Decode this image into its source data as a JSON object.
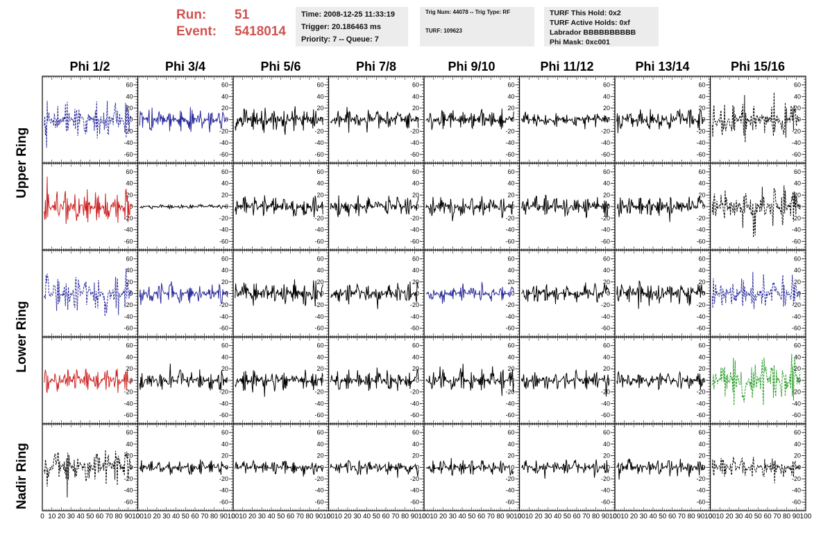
{
  "header": {
    "run_label": "Run:",
    "run_value": "51",
    "event_label": "Event:",
    "event_value": "5418014",
    "time": "Time: 2008-12-25 11:33:19",
    "trigger": "Trigger: 20.186463 ms",
    "priority": "Priority: 7 -- Queue: 7",
    "trig_num": "Trig Num: 44078 -- Trig Type: RF",
    "turf": "TURF: 109623",
    "turf_hold": "TURF This Hold: 0x2",
    "turf_active": "TURF Active Holds: 0xf",
    "labrador": "Labrador BBBBBBBBBB",
    "phi_mask": "Phi Mask: 0xc001"
  },
  "colors": {
    "run_text": "#d0524e",
    "info_box": "#ececec",
    "black": "#000000",
    "blue": "#28289a",
    "red": "#cc2222",
    "green": "#229922"
  },
  "chart_data": {
    "type": "line",
    "columns": [
      "Phi 1/2",
      "Phi 3/4",
      "Phi 5/6",
      "Phi 7/8",
      "Phi 9/10",
      "Phi 11/12",
      "Phi 13/14",
      "Phi 15/16"
    ],
    "rows": [
      "Upper Ring",
      "Upper Ring",
      "Lower Ring",
      "Lower Ring",
      "Nadir Ring"
    ],
    "row_labels": [
      "Upper Ring",
      "Lower Ring",
      "Nadir Ring"
    ],
    "xlim": [
      0,
      100
    ],
    "ylim": [
      -75,
      75
    ],
    "y_ticks": [
      -60,
      -40,
      -20,
      0,
      20,
      40,
      60
    ],
    "x_ticks": [
      0,
      10,
      20,
      30,
      40,
      50,
      60,
      70,
      80,
      90,
      100
    ],
    "x_tick_labels": [
      "0",
      "10",
      "20",
      "30",
      "40",
      "50",
      "60",
      "70",
      "80",
      "90",
      "100"
    ],
    "grid": false,
    "trace_x_range": [
      2,
      94
    ],
    "panels": [
      [
        {
          "color": "blue",
          "dashed": true,
          "amplitude": 35
        },
        {
          "color": "blue",
          "dashed": false,
          "amplitude": 22
        },
        {
          "color": "black",
          "dashed": false,
          "amplitude": 25
        },
        {
          "color": "black",
          "dashed": false,
          "amplitude": 18
        },
        {
          "color": "black",
          "dashed": false,
          "amplitude": 20
        },
        {
          "color": "black",
          "dashed": false,
          "amplitude": 14
        },
        {
          "color": "black",
          "dashed": false,
          "amplitude": 20
        },
        {
          "color": "black",
          "dashed": true,
          "amplitude": 32
        }
      ],
      [
        {
          "color": "red",
          "dashed": false,
          "amplitude": 34
        },
        {
          "color": "black",
          "dashed": false,
          "amplitude": 4
        },
        {
          "color": "black",
          "dashed": false,
          "amplitude": 20
        },
        {
          "color": "black",
          "dashed": false,
          "amplitude": 20
        },
        {
          "color": "black",
          "dashed": false,
          "amplitude": 20
        },
        {
          "color": "black",
          "dashed": false,
          "amplitude": 20
        },
        {
          "color": "black",
          "dashed": false,
          "amplitude": 20
        },
        {
          "color": "black",
          "dashed": true,
          "amplitude": 40
        }
      ],
      [
        {
          "color": "blue",
          "dashed": true,
          "amplitude": 35
        },
        {
          "color": "blue",
          "dashed": false,
          "amplitude": 20
        },
        {
          "color": "black",
          "dashed": false,
          "amplitude": 25
        },
        {
          "color": "black",
          "dashed": false,
          "amplitude": 20
        },
        {
          "color": "blue",
          "dashed": false,
          "amplitude": 14
        },
        {
          "color": "black",
          "dashed": false,
          "amplitude": 20
        },
        {
          "color": "black",
          "dashed": false,
          "amplitude": 22
        },
        {
          "color": "blue",
          "dashed": true,
          "amplitude": 28
        }
      ],
      [
        {
          "color": "red",
          "dashed": false,
          "amplitude": 22
        },
        {
          "color": "black",
          "dashed": false,
          "amplitude": 20
        },
        {
          "color": "black",
          "dashed": false,
          "amplitude": 20
        },
        {
          "color": "black",
          "dashed": false,
          "amplitude": 20
        },
        {
          "color": "black",
          "dashed": false,
          "amplitude": 22
        },
        {
          "color": "black",
          "dashed": false,
          "amplitude": 18
        },
        {
          "color": "black",
          "dashed": false,
          "amplitude": 18
        },
        {
          "color": "green",
          "dashed": true,
          "amplitude": 45
        }
      ],
      [
        {
          "color": "black",
          "dashed": true,
          "amplitude": 35
        },
        {
          "color": "black",
          "dashed": false,
          "amplitude": 14
        },
        {
          "color": "black",
          "dashed": false,
          "amplitude": 14
        },
        {
          "color": "black",
          "dashed": false,
          "amplitude": 14
        },
        {
          "color": "black",
          "dashed": false,
          "amplitude": 14
        },
        {
          "color": "black",
          "dashed": false,
          "amplitude": 14
        },
        {
          "color": "black",
          "dashed": false,
          "amplitude": 16
        },
        {
          "color": "black",
          "dashed": true,
          "amplitude": 20
        }
      ]
    ]
  }
}
